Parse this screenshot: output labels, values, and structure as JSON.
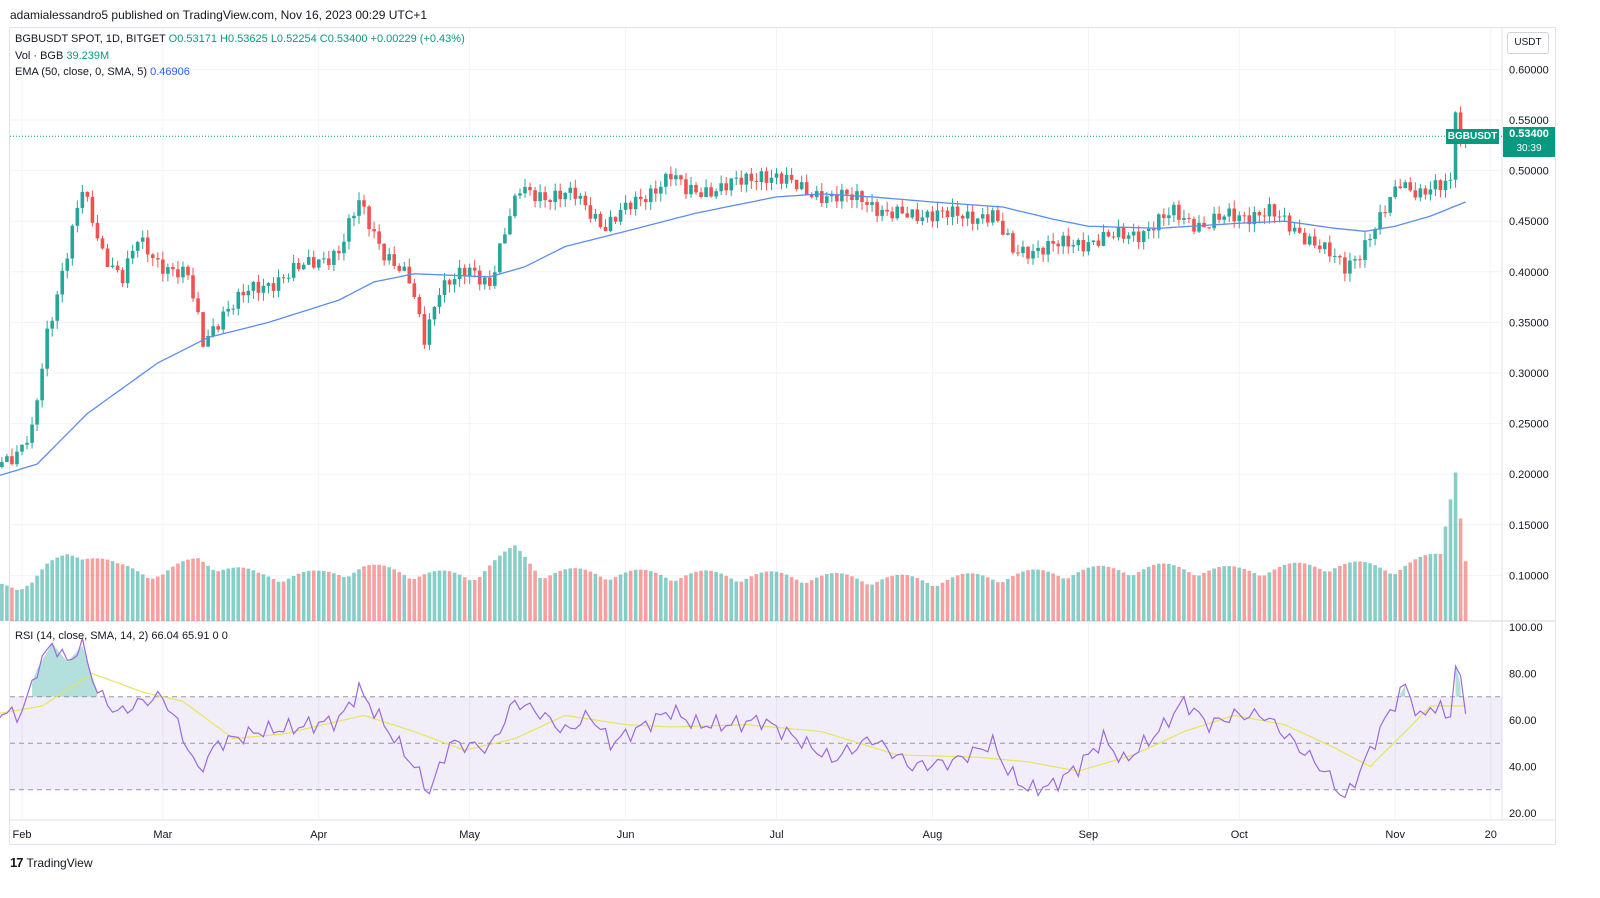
{
  "publisher": "adamialessandro5 published on TradingView.com, Nov 16, 2023 00:29 UTC+1",
  "legend": {
    "symbol": "BGBUSDT SPOT, 1D, BITGET",
    "open": "O0.53171",
    "high": "H0.53625",
    "low": "L0.52254",
    "close": "C0.53400",
    "change": "+0.00229 (+0.43%)",
    "vol_label": "Vol · BGB",
    "vol_value": "39.239M",
    "ema_label": "EMA (50, close, 0, SMA, 5)",
    "ema_value": "0.46906",
    "rsi_label": "RSI (14, close, SMA, 14, 2)",
    "rsi_value": "66.04",
    "rsi_ma_value": "65.91",
    "rsi_extra1": "0",
    "rsi_extra2": "0"
  },
  "currency": "USDT",
  "price_tag": {
    "symbol": "BGBUSDT",
    "value": "0.53400",
    "countdown": "30:39"
  },
  "footer": {
    "brand": "TradingView"
  },
  "colors": {
    "up": "#26a69a",
    "down": "#ef5350",
    "ema": "#5b8def",
    "rsi": "#9c6ad9",
    "rsi_ma": "#e6e55e"
  },
  "chart_data": {
    "type": "candlestick",
    "x_ticks": [
      "Feb",
      "Mar",
      "Apr",
      "May",
      "Jun",
      "Jul",
      "Aug",
      "Sep",
      "Oct",
      "Nov",
      "20"
    ],
    "price_ticks": [
      "0.60000",
      "0.55000",
      "0.50000",
      "0.45000",
      "0.40000",
      "0.35000",
      "0.30000",
      "0.25000",
      "0.20000",
      "0.15000",
      "0.10000"
    ],
    "rsi_ticks": [
      "100.00",
      "80.00",
      "60.00",
      "40.00",
      "20.00"
    ],
    "rsi_bands": [
      70,
      50,
      30
    ],
    "last_price": 0.534,
    "close_path": [
      [
        "2023-01-25",
        0.213
      ],
      [
        "2023-01-31",
        0.218
      ],
      [
        "2023-02-03",
        0.24
      ],
      [
        "2023-02-06",
        0.34
      ],
      [
        "2023-02-10",
        0.42
      ],
      [
        "2023-02-13",
        0.48
      ],
      [
        "2023-02-17",
        0.42
      ],
      [
        "2023-02-21",
        0.395
      ],
      [
        "2023-02-24",
        0.43
      ],
      [
        "2023-02-28",
        0.41
      ],
      [
        "2023-03-06",
        0.395
      ],
      [
        "2023-03-09",
        0.33
      ],
      [
        "2023-03-13",
        0.36
      ],
      [
        "2023-03-18",
        0.38
      ],
      [
        "2023-03-25",
        0.395
      ],
      [
        "2023-03-31",
        0.41
      ],
      [
        "2023-04-05",
        0.42
      ],
      [
        "2023-04-09",
        0.468
      ],
      [
        "2023-04-14",
        0.42
      ],
      [
        "2023-04-19",
        0.39
      ],
      [
        "2023-04-22",
        0.335
      ],
      [
        "2023-04-25",
        0.385
      ],
      [
        "2023-05-01",
        0.4
      ],
      [
        "2023-05-05",
        0.39
      ],
      [
        "2023-05-08",
        0.44
      ],
      [
        "2023-05-11",
        0.48
      ],
      [
        "2023-05-17",
        0.475
      ],
      [
        "2023-05-22",
        0.475
      ],
      [
        "2023-05-28",
        0.445
      ],
      [
        "2023-06-02",
        0.465
      ],
      [
        "2023-06-06",
        0.48
      ],
      [
        "2023-06-10",
        0.495
      ],
      [
        "2023-06-13",
        0.48
      ],
      [
        "2023-06-20",
        0.482
      ],
      [
        "2023-06-28",
        0.497
      ],
      [
        "2023-07-05",
        0.485
      ],
      [
        "2023-07-12",
        0.472
      ],
      [
        "2023-07-18",
        0.475
      ],
      [
        "2023-07-23",
        0.455
      ],
      [
        "2023-07-31",
        0.458
      ],
      [
        "2023-08-06",
        0.455
      ],
      [
        "2023-08-13",
        0.456
      ],
      [
        "2023-08-17",
        0.42
      ],
      [
        "2023-08-22",
        0.423
      ],
      [
        "2023-08-29",
        0.428
      ],
      [
        "2023-09-05",
        0.433
      ],
      [
        "2023-09-12",
        0.44
      ],
      [
        "2023-09-18",
        0.458
      ],
      [
        "2023-09-24",
        0.445
      ],
      [
        "2023-09-29",
        0.455
      ],
      [
        "2023-10-07",
        0.458
      ],
      [
        "2023-10-13",
        0.44
      ],
      [
        "2023-10-18",
        0.42
      ],
      [
        "2023-10-22",
        0.405
      ],
      [
        "2023-10-25",
        0.42
      ],
      [
        "2023-10-29",
        0.45
      ],
      [
        "2023-11-02",
        0.49
      ],
      [
        "2023-11-06",
        0.478
      ],
      [
        "2023-11-10",
        0.483
      ],
      [
        "2023-11-12",
        0.488
      ],
      [
        "2023-11-13",
        0.565
      ],
      [
        "2023-11-14",
        0.53
      ],
      [
        "2023-11-15",
        0.534
      ]
    ],
    "ema_path": [
      [
        "2023-01-25",
        0.195
      ],
      [
        "2023-02-04",
        0.21
      ],
      [
        "2023-02-14",
        0.26
      ],
      [
        "2023-02-28",
        0.31
      ],
      [
        "2023-03-10",
        0.335
      ],
      [
        "2023-03-22",
        0.35
      ],
      [
        "2023-04-05",
        0.372
      ],
      [
        "2023-04-12",
        0.39
      ],
      [
        "2023-04-20",
        0.398
      ],
      [
        "2023-05-05",
        0.395
      ],
      [
        "2023-05-12",
        0.405
      ],
      [
        "2023-05-20",
        0.425
      ],
      [
        "2023-06-01",
        0.44
      ],
      [
        "2023-06-15",
        0.458
      ],
      [
        "2023-07-01",
        0.474
      ],
      [
        "2023-07-10",
        0.477
      ],
      [
        "2023-07-20",
        0.474
      ],
      [
        "2023-08-01",
        0.469
      ],
      [
        "2023-08-15",
        0.464
      ],
      [
        "2023-08-25",
        0.452
      ],
      [
        "2023-09-01",
        0.445
      ],
      [
        "2023-09-15",
        0.443
      ],
      [
        "2023-10-01",
        0.448
      ],
      [
        "2023-10-10",
        0.45
      ],
      [
        "2023-10-20",
        0.443
      ],
      [
        "2023-10-26",
        0.44
      ],
      [
        "2023-11-01",
        0.445
      ],
      [
        "2023-11-08",
        0.455
      ],
      [
        "2023-11-15",
        0.469
      ]
    ],
    "rsi_path": [
      [
        "2023-01-25",
        62
      ],
      [
        "2023-02-01",
        63
      ],
      [
        "2023-02-04",
        82
      ],
      [
        "2023-02-07",
        93
      ],
      [
        "2023-02-10",
        85
      ],
      [
        "2023-02-13",
        92
      ],
      [
        "2023-02-16",
        72
      ],
      [
        "2023-02-20",
        63
      ],
      [
        "2023-02-25",
        68
      ],
      [
        "2023-03-01",
        70
      ],
      [
        "2023-03-04",
        58
      ],
      [
        "2023-03-08",
        38
      ],
      [
        "2023-03-12",
        50
      ],
      [
        "2023-03-20",
        55
      ],
      [
        "2023-03-28",
        57
      ],
      [
        "2023-04-05",
        60
      ],
      [
        "2023-04-09",
        73
      ],
      [
        "2023-04-14",
        58
      ],
      [
        "2023-04-20",
        40
      ],
      [
        "2023-04-23",
        29
      ],
      [
        "2023-04-27",
        50
      ],
      [
        "2023-05-05",
        48
      ],
      [
        "2023-05-10",
        68
      ],
      [
        "2023-05-15",
        63
      ],
      [
        "2023-05-20",
        55
      ],
      [
        "2023-05-25",
        62
      ],
      [
        "2023-05-29",
        50
      ],
      [
        "2023-06-05",
        58
      ],
      [
        "2023-06-10",
        64
      ],
      [
        "2023-06-15",
        58
      ],
      [
        "2023-06-22",
        58
      ],
      [
        "2023-06-28",
        60
      ],
      [
        "2023-07-05",
        52
      ],
      [
        "2023-07-12",
        43
      ],
      [
        "2023-07-20",
        52
      ],
      [
        "2023-07-28",
        40
      ],
      [
        "2023-08-05",
        42
      ],
      [
        "2023-08-13",
        50
      ],
      [
        "2023-08-16",
        38
      ],
      [
        "2023-08-20",
        30
      ],
      [
        "2023-08-25",
        32
      ],
      [
        "2023-08-30",
        40
      ],
      [
        "2023-09-04",
        52
      ],
      [
        "2023-09-08",
        42
      ],
      [
        "2023-09-15",
        55
      ],
      [
        "2023-09-20",
        68
      ],
      [
        "2023-09-25",
        58
      ],
      [
        "2023-09-30",
        62
      ],
      [
        "2023-10-06",
        62
      ],
      [
        "2023-10-12",
        50
      ],
      [
        "2023-10-18",
        38
      ],
      [
        "2023-10-22",
        26
      ],
      [
        "2023-10-25",
        38
      ],
      [
        "2023-10-30",
        60
      ],
      [
        "2023-11-03",
        75
      ],
      [
        "2023-11-06",
        60
      ],
      [
        "2023-11-08",
        66
      ],
      [
        "2023-11-12",
        62
      ],
      [
        "2023-11-13",
        84
      ],
      [
        "2023-11-15",
        66
      ]
    ],
    "rsi_ma_path": [
      [
        "2023-01-25",
        62
      ],
      [
        "2023-02-05",
        66
      ],
      [
        "2023-02-15",
        80
      ],
      [
        "2023-02-25",
        72
      ],
      [
        "2023-03-05",
        68
      ],
      [
        "2023-03-15",
        52
      ],
      [
        "2023-03-25",
        54
      ],
      [
        "2023-04-10",
        62
      ],
      [
        "2023-04-20",
        55
      ],
      [
        "2023-04-30",
        47
      ],
      [
        "2023-05-10",
        52
      ],
      [
        "2023-05-20",
        62
      ],
      [
        "2023-06-01",
        58
      ],
      [
        "2023-06-10",
        57
      ],
      [
        "2023-06-25",
        58
      ],
      [
        "2023-07-10",
        55
      ],
      [
        "2023-07-25",
        45
      ],
      [
        "2023-08-10",
        44
      ],
      [
        "2023-08-20",
        42
      ],
      [
        "2023-08-30",
        38
      ],
      [
        "2023-09-10",
        45
      ],
      [
        "2023-09-20",
        55
      ],
      [
        "2023-09-30",
        62
      ],
      [
        "2023-10-10",
        58
      ],
      [
        "2023-10-20",
        48
      ],
      [
        "2023-10-27",
        40
      ],
      [
        "2023-11-03",
        55
      ],
      [
        "2023-11-08",
        66
      ],
      [
        "2023-11-15",
        66
      ]
    ],
    "volume_path": [
      [
        "2023-01-25",
        0.081
      ],
      [
        "2023-02-03",
        0.086
      ],
      [
        "2023-02-06",
        0.1
      ],
      [
        "2023-02-10",
        0.112
      ],
      [
        "2023-02-14",
        0.115
      ],
      [
        "2023-02-20",
        0.1
      ],
      [
        "2023-03-01",
        0.094
      ],
      [
        "2023-03-08",
        0.108
      ],
      [
        "2023-03-20",
        0.092
      ],
      [
        "2023-04-01",
        0.093
      ],
      [
        "2023-04-10",
        0.1
      ],
      [
        "2023-04-20",
        0.095
      ],
      [
        "2023-05-01",
        0.091
      ],
      [
        "2023-05-10",
        0.118
      ],
      [
        "2023-05-15",
        0.096
      ],
      [
        "2023-06-01",
        0.094
      ],
      [
        "2023-07-01",
        0.092
      ],
      [
        "2023-08-01",
        0.088
      ],
      [
        "2023-09-01",
        0.097
      ],
      [
        "2023-09-15",
        0.1
      ],
      [
        "2023-10-01",
        0.097
      ],
      [
        "2023-10-20",
        0.103
      ],
      [
        "2023-11-01",
        0.1
      ],
      [
        "2023-11-10",
        0.112
      ],
      [
        "2023-11-13",
        0.2
      ],
      [
        "2023-11-15",
        0.11
      ]
    ]
  }
}
